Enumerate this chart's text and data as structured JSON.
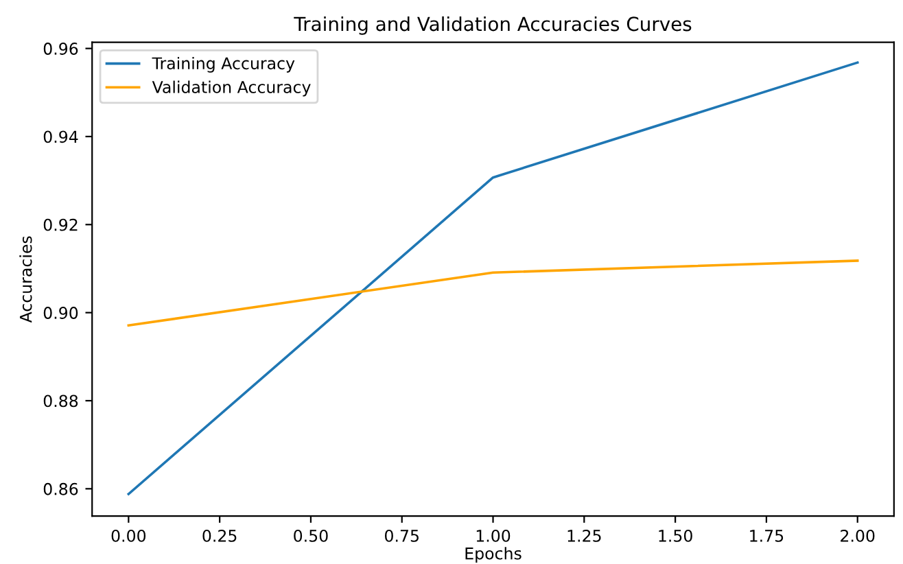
{
  "chart_data": {
    "type": "line",
    "title": "Training and Validation Accuracies Curves",
    "xlabel": "Epochs",
    "ylabel": "Accuracies",
    "x": [
      0,
      1,
      2
    ],
    "series": [
      {
        "name": "Training Accuracy",
        "color": "#1f77b4",
        "values": [
          0.8588,
          0.9307,
          0.9568
        ]
      },
      {
        "name": "Validation Accuracy",
        "color": "#ffa500",
        "values": [
          0.8971,
          0.9091,
          0.9118
        ]
      }
    ],
    "xlim": [
      -0.1,
      2.1
    ],
    "ylim": [
      0.8538,
      0.9614
    ],
    "xticks": [
      {
        "value": 0,
        "label": "0.00"
      },
      {
        "value": 0.25,
        "label": "0.25"
      },
      {
        "value": 0.5,
        "label": "0.50"
      },
      {
        "value": 0.75,
        "label": "0.75"
      },
      {
        "value": 1,
        "label": "1.00"
      },
      {
        "value": 1.25,
        "label": "1.25"
      },
      {
        "value": 1.5,
        "label": "1.50"
      },
      {
        "value": 1.75,
        "label": "1.75"
      },
      {
        "value": 2,
        "label": "2.00"
      }
    ],
    "yticks": [
      {
        "value": 0.86,
        "label": "0.86"
      },
      {
        "value": 0.88,
        "label": "0.88"
      },
      {
        "value": 0.9,
        "label": "0.90"
      },
      {
        "value": 0.92,
        "label": "0.92"
      },
      {
        "value": 0.94,
        "label": "0.94"
      },
      {
        "value": 0.96,
        "label": "0.96"
      }
    ],
    "grid": false,
    "legend": "top left",
    "marker": "none",
    "line_style": "solid"
  }
}
